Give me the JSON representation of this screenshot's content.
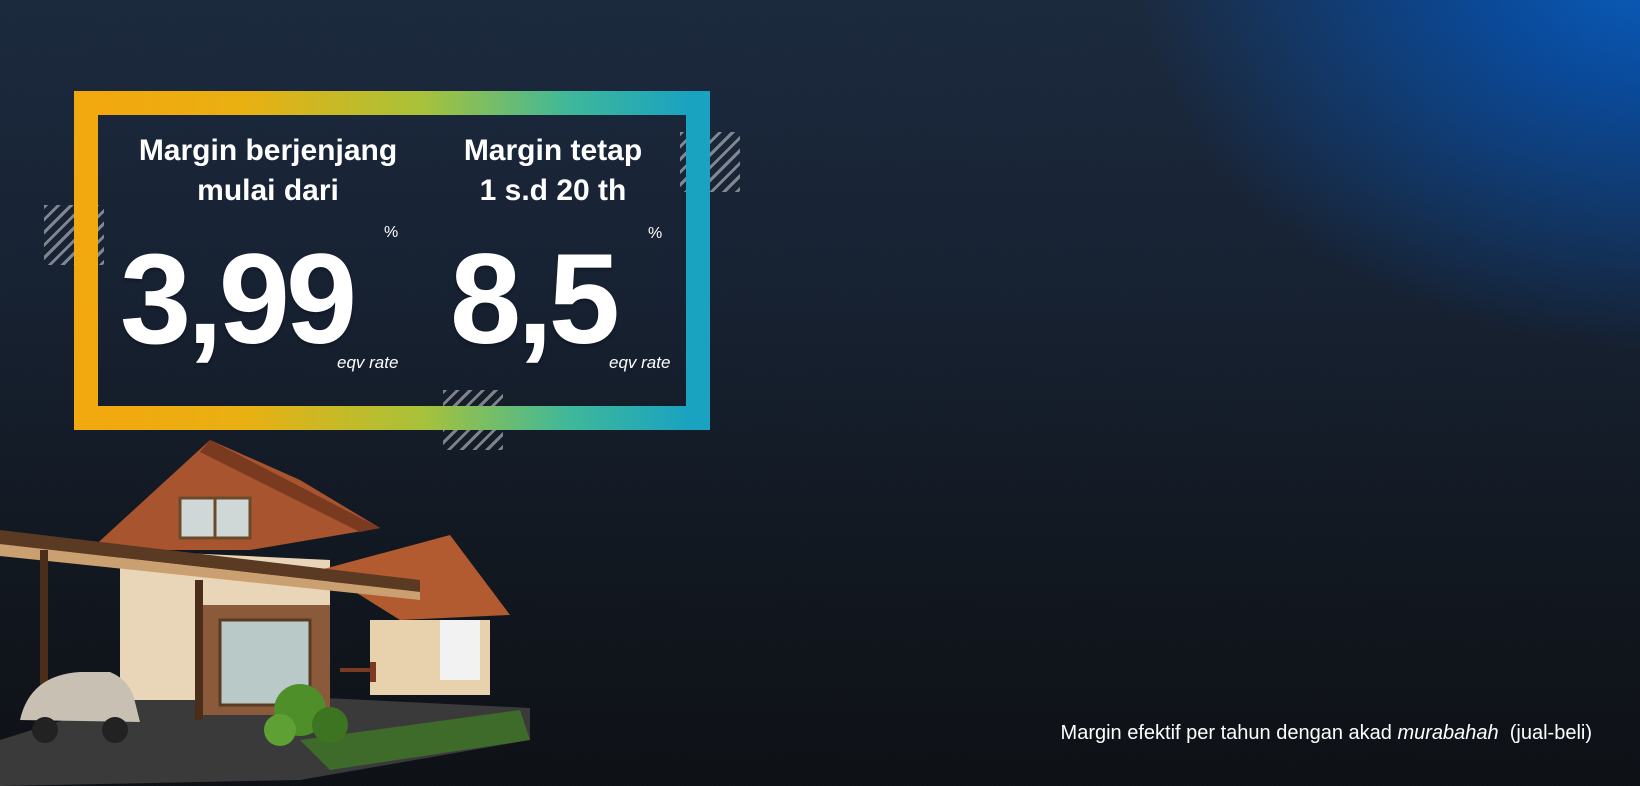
{
  "offer": {
    "tiered": {
      "heading_line1": "Margin berjenjang",
      "heading_line2": "mulai dari",
      "rate": "3,99",
      "percent_sign": "%",
      "rate_note": "eqv rate"
    },
    "fixed": {
      "heading_line1": "Margin tetap",
      "heading_line2": "1 s.d 20 th",
      "rate": "8,5",
      "percent_sign": "%",
      "rate_note": "eqv rate"
    }
  },
  "footnote": {
    "prefix": "Margin efektif per tahun dengan akad ",
    "italic": "murabahah",
    "suffix": "  (jual-beli)"
  },
  "colors": {
    "frame_start": "#f2a80f",
    "frame_mid": "#a8c23a",
    "frame_end": "#1aa3c0",
    "background_dark": "#121821",
    "background_accent": "#0a5fc0"
  },
  "illustration": "house-with-carport-and-car"
}
